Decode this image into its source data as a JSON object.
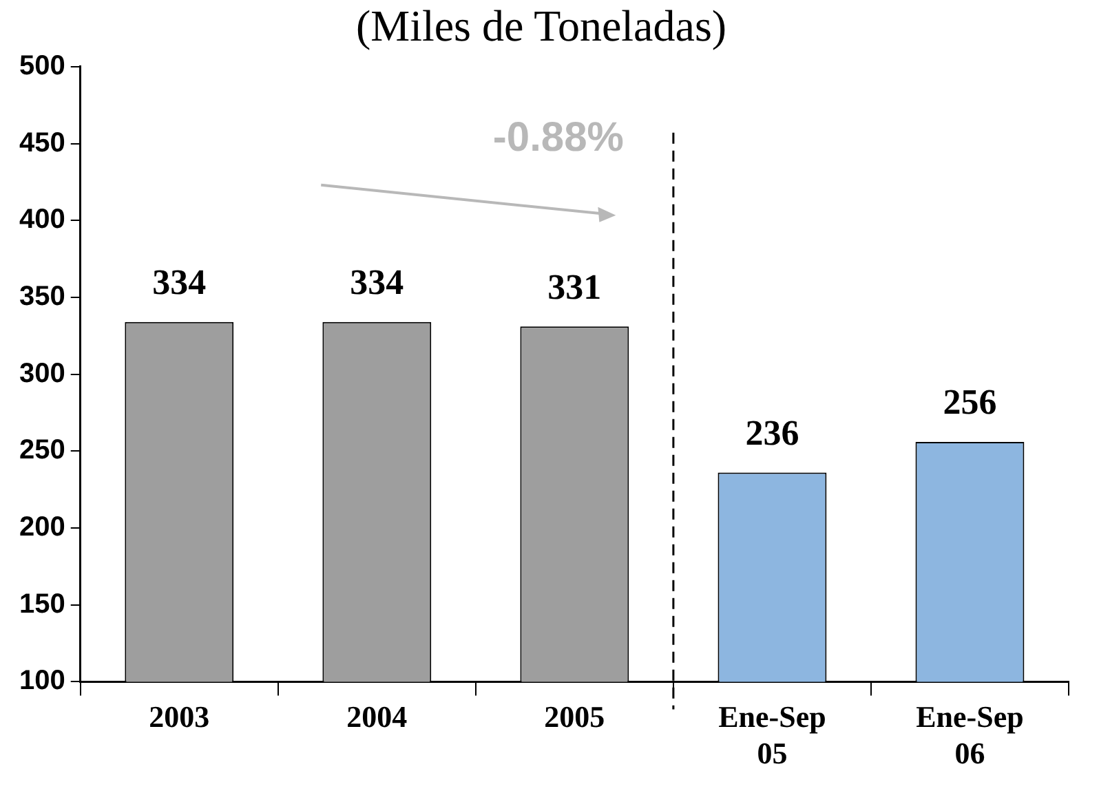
{
  "chart_data": {
    "type": "bar",
    "title": "(Miles de Toneladas)",
    "categories": [
      "2003",
      "2004",
      "2005",
      "Ene-Sep 05",
      "Ene-Sep 06"
    ],
    "values": [
      334,
      334,
      331,
      236,
      256
    ],
    "colors": [
      "#9e9e9e",
      "#9e9e9e",
      "#9e9e9e",
      "#8db6e0",
      "#8db6e0"
    ],
    "ylim": [
      100,
      500
    ],
    "yticks": [
      100,
      150,
      200,
      250,
      300,
      350,
      400,
      450,
      500
    ],
    "grid": false,
    "legend": false,
    "data_labels": true,
    "annotations": [
      "-0.88%"
    ]
  }
}
